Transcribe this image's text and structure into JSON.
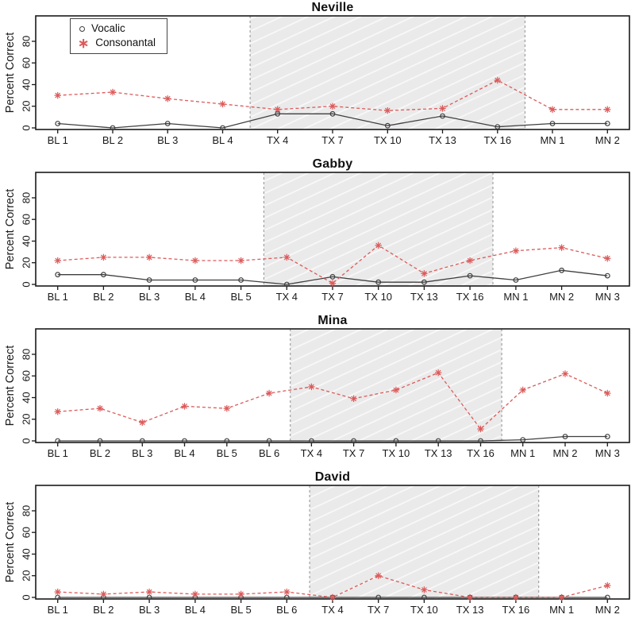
{
  "figure": {
    "description": "Four stacked single-case design line charts (baseline / treatment shaded / maintenance phases)"
  },
  "legend": {
    "items": [
      {
        "label": "Vocalic",
        "marker": "circle-icon"
      },
      {
        "label": "Consonantal",
        "marker": "asterisk-icon"
      }
    ]
  },
  "style": {
    "axis_color": "#1a1a1a",
    "text_color": "#1a1a1a",
    "vocalic_color": "#3f3f3f",
    "consonantal_color": "#dc5a5a",
    "shade_fill": "#eaeaea",
    "shade_line": "#f8f8f8",
    "phase_line_color": "#999999"
  },
  "chart_data": [
    {
      "type": "line",
      "title": "Neville",
      "ylabel": "Percent Correct",
      "ylim": [
        0,
        100
      ],
      "yticks": [
        0,
        20,
        40,
        60,
        80
      ],
      "categories": [
        "BL 1",
        "BL 2",
        "BL 3",
        "BL 4",
        "TX 4",
        "TX 7",
        "TX 10",
        "TX 13",
        "TX 16",
        "MN 1",
        "MN 2"
      ],
      "series": [
        {
          "name": "Vocalic",
          "marker": "circle",
          "linestyle": "solid",
          "values": [
            4,
            0,
            4,
            0,
            13,
            13,
            2,
            11,
            1,
            4,
            4
          ]
        },
        {
          "name": "Consonantal",
          "marker": "asterisk",
          "linestyle": "dashed",
          "values": [
            30,
            33,
            27,
            22,
            17,
            20,
            16,
            18,
            44,
            17,
            17
          ]
        }
      ],
      "phase_boundaries": [
        4.5,
        9.5
      ],
      "shaded_phase": "treatment",
      "legend_visible": true
    },
    {
      "type": "line",
      "title": "Gabby",
      "ylabel": "Percent Correct",
      "ylim": [
        0,
        100
      ],
      "yticks": [
        0,
        20,
        40,
        60,
        80
      ],
      "categories": [
        "BL 1",
        "BL 2",
        "BL 3",
        "BL 4",
        "BL 5",
        "TX 4",
        "TX 7",
        "TX 10",
        "TX 13",
        "TX 16",
        "MN 1",
        "MN 2",
        "MN 3"
      ],
      "series": [
        {
          "name": "Vocalic",
          "marker": "circle",
          "linestyle": "solid",
          "values": [
            9,
            9,
            4,
            4,
            4,
            0,
            7,
            2,
            2,
            8,
            4,
            13,
            8
          ]
        },
        {
          "name": "Consonantal",
          "marker": "asterisk",
          "linestyle": "dashed",
          "values": [
            22,
            25,
            25,
            22,
            22,
            25,
            1,
            36,
            10,
            22,
            31,
            34,
            24
          ]
        }
      ],
      "phase_boundaries": [
        5.5,
        10.5
      ],
      "shaded_phase": "treatment",
      "legend_visible": false
    },
    {
      "type": "line",
      "title": "Mina",
      "ylabel": "Percent Correct",
      "ylim": [
        0,
        100
      ],
      "yticks": [
        0,
        20,
        40,
        60,
        80
      ],
      "categories": [
        "BL 1",
        "BL 2",
        "BL 3",
        "BL 4",
        "BL 5",
        "BL 6",
        "TX 4",
        "TX 7",
        "TX 10",
        "TX 13",
        "TX 16",
        "MN 1",
        "MN 2",
        "MN 3"
      ],
      "series": [
        {
          "name": "Vocalic",
          "marker": "circle",
          "linestyle": "solid",
          "values": [
            0,
            0,
            0,
            0,
            0,
            0,
            0,
            0,
            0,
            0,
            0,
            1,
            4,
            4
          ]
        },
        {
          "name": "Consonantal",
          "marker": "asterisk",
          "linestyle": "dashed",
          "values": [
            27,
            30,
            17,
            32,
            30,
            44,
            50,
            39,
            47,
            63,
            11,
            47,
            62,
            44
          ]
        }
      ],
      "phase_boundaries": [
        6.5,
        11.5
      ],
      "shaded_phase": "treatment",
      "legend_visible": false
    },
    {
      "type": "line",
      "title": "David",
      "ylabel": "Percent Correct",
      "ylim": [
        0,
        100
      ],
      "yticks": [
        0,
        20,
        40,
        60,
        80
      ],
      "categories": [
        "BL 1",
        "BL 2",
        "BL 3",
        "BL 4",
        "BL 5",
        "BL 6",
        "TX 4",
        "TX 7",
        "TX 10",
        "TX 13",
        "TX 16",
        "MN 1",
        "MN 2"
      ],
      "series": [
        {
          "name": "Vocalic",
          "marker": "circle",
          "linestyle": "solid",
          "values": [
            0,
            0,
            0,
            0,
            0,
            0,
            0,
            0,
            0,
            0,
            0,
            0,
            0
          ]
        },
        {
          "name": "Consonantal",
          "marker": "asterisk",
          "linestyle": "dashed",
          "values": [
            5,
            3,
            5,
            3,
            3,
            5,
            0,
            20,
            7,
            0,
            0,
            0,
            11
          ]
        }
      ],
      "phase_boundaries": [
        6.5,
        11.5
      ],
      "shaded_phase": "treatment",
      "legend_visible": false
    }
  ]
}
